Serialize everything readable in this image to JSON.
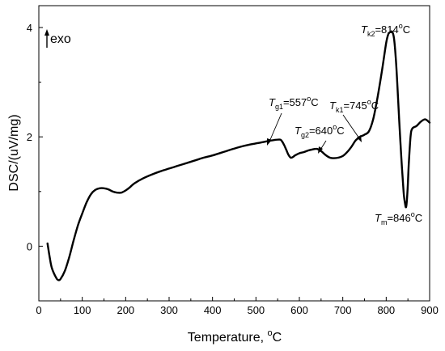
{
  "chart_data": {
    "type": "line",
    "xlabel": "Temperature, °C",
    "xlabel_main": "Temperature, ",
    "xlabel_unit_sup": "o",
    "xlabel_unit": "C",
    "ylabel": "DSC/(uV/mg)",
    "xlim": [
      0,
      900
    ],
    "ylim": [
      -1,
      4.4
    ],
    "xticks": [
      0,
      100,
      200,
      300,
      400,
      500,
      600,
      700,
      800,
      900
    ],
    "yticks": [
      0,
      2,
      4
    ],
    "grid": false,
    "exo_label": "exo",
    "series": [
      {
        "x": [
          20,
          25,
          30,
          40,
          45,
          50,
          60,
          70,
          80,
          90,
          100,
          110,
          120,
          130,
          140,
          150,
          160,
          170,
          180,
          190,
          200,
          210,
          220,
          240,
          260,
          280,
          300,
          320,
          340,
          360,
          380,
          400,
          420,
          440,
          460,
          480,
          500,
          520,
          540,
          555,
          560,
          565,
          570,
          575,
          580,
          585,
          590,
          600,
          610,
          620,
          630,
          640,
          650,
          660,
          670,
          680,
          690,
          700,
          710,
          720,
          730,
          740,
          745,
          750,
          760,
          770,
          780,
          790,
          800,
          805,
          810,
          814,
          818,
          822,
          826,
          830,
          835,
          840,
          843,
          846,
          849,
          852,
          856,
          860,
          870,
          880,
          890,
          900
        ],
        "y": [
          0.05,
          -0.2,
          -0.4,
          -0.58,
          -0.62,
          -0.6,
          -0.45,
          -0.2,
          0.1,
          0.38,
          0.6,
          0.8,
          0.95,
          1.03,
          1.06,
          1.06,
          1.04,
          1.0,
          0.98,
          0.98,
          1.02,
          1.08,
          1.15,
          1.24,
          1.31,
          1.37,
          1.42,
          1.47,
          1.52,
          1.57,
          1.62,
          1.66,
          1.71,
          1.76,
          1.81,
          1.85,
          1.88,
          1.91,
          1.94,
          1.95,
          1.92,
          1.85,
          1.76,
          1.67,
          1.62,
          1.63,
          1.66,
          1.7,
          1.72,
          1.75,
          1.77,
          1.78,
          1.74,
          1.67,
          1.62,
          1.61,
          1.62,
          1.65,
          1.72,
          1.82,
          1.94,
          2.0,
          2.02,
          2.04,
          2.1,
          2.32,
          2.72,
          3.2,
          3.72,
          3.88,
          3.92,
          3.92,
          3.8,
          3.45,
          2.9,
          2.3,
          1.6,
          1.0,
          0.8,
          0.72,
          1.0,
          1.5,
          2.0,
          2.15,
          2.2,
          2.28,
          2.32,
          2.26
        ]
      }
    ],
    "annotations": [
      {
        "id": "tg1",
        "symbol": "T",
        "sub": "g1",
        "value_text": "=557",
        "sup": "o",
        "unit": "C"
      },
      {
        "id": "tg2",
        "symbol": "T",
        "sub": "g2",
        "value_text": "=640",
        "sup": "o",
        "unit": "C"
      },
      {
        "id": "tk1",
        "symbol": "T",
        "sub": "k1",
        "value_text": "=745",
        "sup": "o",
        "unit": "C"
      },
      {
        "id": "tk2",
        "symbol": "T",
        "sub": "k2",
        "value_text": "=814",
        "sup": "o",
        "unit": "C"
      },
      {
        "id": "tm",
        "symbol": "T",
        "sub": "m",
        "value_text": "=846",
        "sup": "o",
        "unit": "C"
      }
    ]
  }
}
